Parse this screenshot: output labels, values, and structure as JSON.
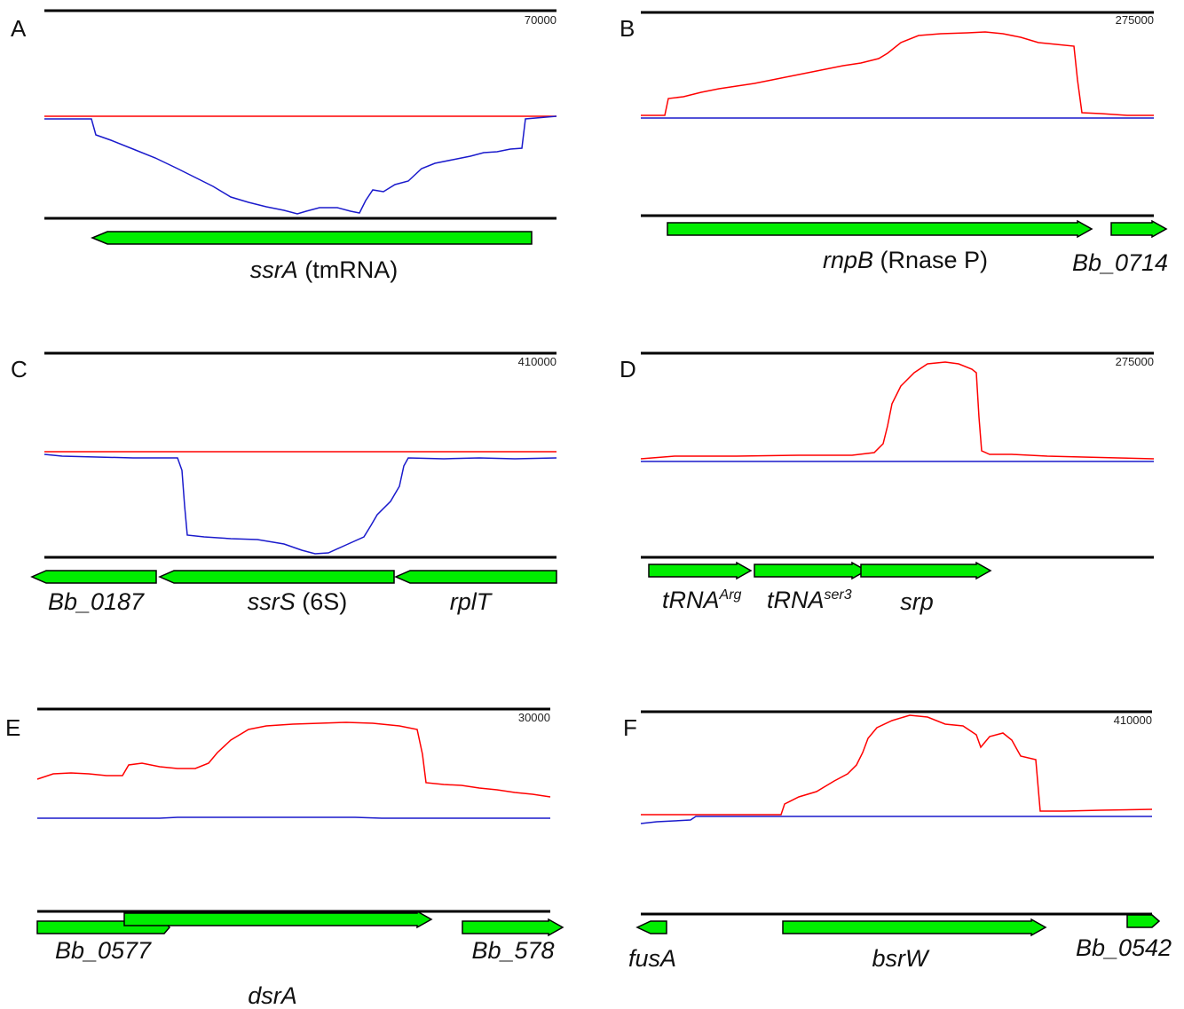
{
  "colors": {
    "forward_strand": "#ff0000",
    "reverse_strand": "#0000cc",
    "gene_fill": "#00ee00",
    "axis": "#000000"
  },
  "panels": [
    {
      "letter": "A",
      "scale": "70000",
      "genes": [
        {
          "name": "ssrA",
          "suffix": " (tmRNA)",
          "direction": "reverse"
        }
      ]
    },
    {
      "letter": "B",
      "scale": "275000",
      "genes": [
        {
          "name": "rnpB",
          "suffix": " (Rnase P)",
          "direction": "forward"
        },
        {
          "name": "Bb_0714",
          "suffix": "",
          "direction": "forward"
        }
      ]
    },
    {
      "letter": "C",
      "scale": "410000",
      "genes": [
        {
          "name": "Bb_0187",
          "suffix": "",
          "direction": "reverse"
        },
        {
          "name": "ssrS",
          "suffix": " (6S)",
          "direction": "reverse"
        },
        {
          "name": "rplT",
          "suffix": "",
          "direction": "reverse"
        }
      ]
    },
    {
      "letter": "D",
      "scale": "275000",
      "genes": [
        {
          "name": "tRNA",
          "sup": "Arg",
          "direction": "forward"
        },
        {
          "name": "tRNA",
          "sup": "ser3",
          "direction": "forward"
        },
        {
          "name": "srp",
          "suffix": "",
          "direction": "forward"
        }
      ]
    },
    {
      "letter": "E",
      "scale": "30000",
      "genes": [
        {
          "name": "Bb_0577",
          "suffix": "",
          "direction": "forward"
        },
        {
          "name": "Bb_578",
          "suffix": "",
          "direction": "forward"
        },
        {
          "name": "dsrA",
          "suffix": "",
          "direction": "forward"
        }
      ]
    },
    {
      "letter": "F",
      "scale": "410000",
      "genes": [
        {
          "name": "fusA",
          "suffix": "",
          "direction": "reverse"
        },
        {
          "name": "bsrW",
          "suffix": "",
          "direction": "forward"
        },
        {
          "name": "Bb_0542",
          "suffix": "",
          "direction": "forward"
        }
      ]
    }
  ]
}
